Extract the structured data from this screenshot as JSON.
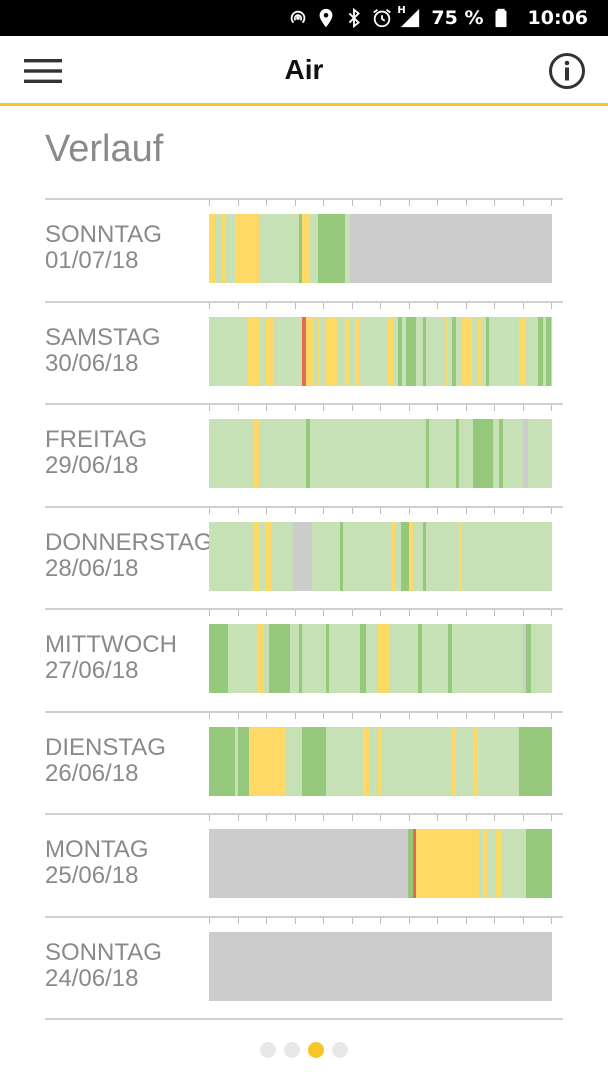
{
  "status_bar": {
    "battery_percent": "75 %",
    "time": "10:06",
    "network_label": "H",
    "icons": [
      "hotspot-icon",
      "location-icon",
      "bluetooth-icon",
      "alarm-icon",
      "signal-icon",
      "battery-icon"
    ]
  },
  "app_bar": {
    "title": "Air",
    "menu_icon": "hamburger-menu-icon",
    "info_icon": "info-icon"
  },
  "section_title": "Verlauf",
  "colors": {
    "accent": "#f6c627",
    "good": "#c5e1b5",
    "very_good": "#95c87a",
    "moderate": "#ffd966",
    "poor": "#e86a4e",
    "no_data": "#cccccc"
  },
  "days": [
    {
      "weekday": "SONNTAG",
      "date": "01/07/18",
      "segments": [
        {
          "start": 0,
          "end": 0.4,
          "level": "moderate"
        },
        {
          "start": 0.4,
          "end": 0.9,
          "level": "good"
        },
        {
          "start": 0.9,
          "end": 1.1,
          "level": "moderate"
        },
        {
          "start": 1.1,
          "end": 1.8,
          "level": "good"
        },
        {
          "start": 1.8,
          "end": 3.5,
          "level": "moderate"
        },
        {
          "start": 3.5,
          "end": 6.3,
          "level": "good"
        },
        {
          "start": 6.3,
          "end": 6.5,
          "level": "very_good"
        },
        {
          "start": 6.5,
          "end": 7.0,
          "level": "moderate"
        },
        {
          "start": 7.0,
          "end": 7.6,
          "level": "good"
        },
        {
          "start": 7.6,
          "end": 9.5,
          "level": "very_good"
        },
        {
          "start": 9.5,
          "end": 9.9,
          "level": "good"
        },
        {
          "start": 9.9,
          "end": 24,
          "level": "no_data"
        }
      ]
    },
    {
      "weekday": "SAMSTAG",
      "date": "30/06/18",
      "segments": [
        {
          "start": 0,
          "end": 2.7,
          "level": "good"
        },
        {
          "start": 2.7,
          "end": 3.6,
          "level": "moderate"
        },
        {
          "start": 3.6,
          "end": 4.0,
          "level": "good"
        },
        {
          "start": 4.0,
          "end": 4.5,
          "level": "moderate"
        },
        {
          "start": 4.5,
          "end": 6.5,
          "level": "good"
        },
        {
          "start": 6.5,
          "end": 6.8,
          "level": "poor"
        },
        {
          "start": 6.8,
          "end": 7.3,
          "level": "moderate"
        },
        {
          "start": 7.3,
          "end": 7.6,
          "level": "good"
        },
        {
          "start": 7.6,
          "end": 7.8,
          "level": "moderate"
        },
        {
          "start": 7.8,
          "end": 8.1,
          "level": "good"
        },
        {
          "start": 8.1,
          "end": 9.0,
          "level": "moderate"
        },
        {
          "start": 9.0,
          "end": 9.5,
          "level": "good"
        },
        {
          "start": 9.5,
          "end": 9.8,
          "level": "moderate"
        },
        {
          "start": 9.8,
          "end": 10.2,
          "level": "good"
        },
        {
          "start": 10.2,
          "end": 10.6,
          "level": "moderate"
        },
        {
          "start": 10.6,
          "end": 12.5,
          "level": "good"
        },
        {
          "start": 12.5,
          "end": 12.9,
          "level": "moderate"
        },
        {
          "start": 12.9,
          "end": 13.2,
          "level": "good"
        },
        {
          "start": 13.2,
          "end": 13.5,
          "level": "very_good"
        },
        {
          "start": 13.5,
          "end": 13.8,
          "level": "good"
        },
        {
          "start": 13.8,
          "end": 14.5,
          "level": "very_good"
        },
        {
          "start": 14.5,
          "end": 15.0,
          "level": "good"
        },
        {
          "start": 15.0,
          "end": 15.2,
          "level": "very_good"
        },
        {
          "start": 15.2,
          "end": 16.5,
          "level": "good"
        },
        {
          "start": 16.5,
          "end": 16.7,
          "level": "moderate"
        },
        {
          "start": 16.7,
          "end": 17.0,
          "level": "good"
        },
        {
          "start": 17.0,
          "end": 17.3,
          "level": "very_good"
        },
        {
          "start": 17.3,
          "end": 17.6,
          "level": "good"
        },
        {
          "start": 17.6,
          "end": 18.4,
          "level": "moderate"
        },
        {
          "start": 18.4,
          "end": 18.8,
          "level": "good"
        },
        {
          "start": 18.8,
          "end": 19.1,
          "level": "moderate"
        },
        {
          "start": 19.1,
          "end": 19.4,
          "level": "good"
        },
        {
          "start": 19.4,
          "end": 19.6,
          "level": "very_good"
        },
        {
          "start": 19.6,
          "end": 21.7,
          "level": "good"
        },
        {
          "start": 21.7,
          "end": 22.2,
          "level": "moderate"
        },
        {
          "start": 22.2,
          "end": 23.0,
          "level": "good"
        },
        {
          "start": 23.0,
          "end": 23.4,
          "level": "very_good"
        },
        {
          "start": 23.4,
          "end": 23.6,
          "level": "good"
        },
        {
          "start": 23.6,
          "end": 23.9,
          "level": "very_good"
        },
        {
          "start": 23.9,
          "end": 24,
          "level": "good"
        }
      ]
    },
    {
      "weekday": "FREITAG",
      "date": "29/06/18",
      "segments": [
        {
          "start": 0,
          "end": 3.1,
          "level": "good"
        },
        {
          "start": 3.1,
          "end": 3.5,
          "level": "moderate"
        },
        {
          "start": 3.5,
          "end": 6.8,
          "level": "good"
        },
        {
          "start": 6.8,
          "end": 7.1,
          "level": "very_good"
        },
        {
          "start": 7.1,
          "end": 15.2,
          "level": "good"
        },
        {
          "start": 15.2,
          "end": 15.4,
          "level": "very_good"
        },
        {
          "start": 15.4,
          "end": 17.3,
          "level": "good"
        },
        {
          "start": 17.3,
          "end": 17.5,
          "level": "very_good"
        },
        {
          "start": 17.5,
          "end": 18.5,
          "level": "good"
        },
        {
          "start": 18.5,
          "end": 19.9,
          "level": "very_good"
        },
        {
          "start": 19.9,
          "end": 20.3,
          "level": "good"
        },
        {
          "start": 20.3,
          "end": 20.6,
          "level": "very_good"
        },
        {
          "start": 20.6,
          "end": 22.0,
          "level": "good"
        },
        {
          "start": 22.0,
          "end": 22.3,
          "level": "no_data"
        },
        {
          "start": 22.3,
          "end": 24,
          "level": "good"
        }
      ]
    },
    {
      "weekday": "DONNERSTAG",
      "date": "28/06/18",
      "segments": [
        {
          "start": 0,
          "end": 3.1,
          "level": "good"
        },
        {
          "start": 3.1,
          "end": 3.6,
          "level": "moderate"
        },
        {
          "start": 3.6,
          "end": 3.9,
          "level": "good"
        },
        {
          "start": 3.9,
          "end": 4.4,
          "level": "moderate"
        },
        {
          "start": 4.4,
          "end": 5.9,
          "level": "good"
        },
        {
          "start": 5.9,
          "end": 7.2,
          "level": "no_data"
        },
        {
          "start": 7.2,
          "end": 9.2,
          "level": "good"
        },
        {
          "start": 9.2,
          "end": 9.4,
          "level": "very_good"
        },
        {
          "start": 9.4,
          "end": 12.8,
          "level": "good"
        },
        {
          "start": 12.8,
          "end": 13.0,
          "level": "moderate"
        },
        {
          "start": 13.0,
          "end": 13.4,
          "level": "good"
        },
        {
          "start": 13.4,
          "end": 14.0,
          "level": "very_good"
        },
        {
          "start": 14.0,
          "end": 14.3,
          "level": "moderate"
        },
        {
          "start": 14.3,
          "end": 15.0,
          "level": "good"
        },
        {
          "start": 15.0,
          "end": 15.2,
          "level": "very_good"
        },
        {
          "start": 15.2,
          "end": 17.5,
          "level": "good"
        },
        {
          "start": 17.5,
          "end": 17.7,
          "level": "moderate"
        },
        {
          "start": 17.7,
          "end": 24,
          "level": "good"
        }
      ]
    },
    {
      "weekday": "MITTWOCH",
      "date": "27/06/18",
      "segments": [
        {
          "start": 0,
          "end": 1.3,
          "level": "very_good"
        },
        {
          "start": 1.3,
          "end": 3.4,
          "level": "good"
        },
        {
          "start": 3.4,
          "end": 3.8,
          "level": "moderate"
        },
        {
          "start": 3.8,
          "end": 4.2,
          "level": "good"
        },
        {
          "start": 4.2,
          "end": 5.7,
          "level": "very_good"
        },
        {
          "start": 5.7,
          "end": 6.3,
          "level": "good"
        },
        {
          "start": 6.3,
          "end": 6.5,
          "level": "very_good"
        },
        {
          "start": 6.5,
          "end": 8.2,
          "level": "good"
        },
        {
          "start": 8.2,
          "end": 8.4,
          "level": "very_good"
        },
        {
          "start": 8.4,
          "end": 10.6,
          "level": "good"
        },
        {
          "start": 10.6,
          "end": 11.0,
          "level": "very_good"
        },
        {
          "start": 11.0,
          "end": 11.8,
          "level": "good"
        },
        {
          "start": 11.8,
          "end": 12.6,
          "level": "moderate"
        },
        {
          "start": 12.6,
          "end": 14.6,
          "level": "good"
        },
        {
          "start": 14.6,
          "end": 14.9,
          "level": "very_good"
        },
        {
          "start": 14.9,
          "end": 16.7,
          "level": "good"
        },
        {
          "start": 16.7,
          "end": 17.0,
          "level": "very_good"
        },
        {
          "start": 17.0,
          "end": 22.0,
          "level": "good"
        },
        {
          "start": 22.0,
          "end": 22.2,
          "level": "no_data"
        },
        {
          "start": 22.2,
          "end": 22.5,
          "level": "very_good"
        },
        {
          "start": 22.5,
          "end": 24,
          "level": "good"
        }
      ]
    },
    {
      "weekday": "DIENSTAG",
      "date": "26/06/18",
      "segments": [
        {
          "start": 0,
          "end": 1.8,
          "level": "very_good"
        },
        {
          "start": 1.8,
          "end": 2.0,
          "level": "good"
        },
        {
          "start": 2.0,
          "end": 2.8,
          "level": "very_good"
        },
        {
          "start": 2.8,
          "end": 5.3,
          "level": "moderate"
        },
        {
          "start": 5.3,
          "end": 6.5,
          "level": "good"
        },
        {
          "start": 6.5,
          "end": 8.2,
          "level": "very_good"
        },
        {
          "start": 8.2,
          "end": 10.8,
          "level": "good"
        },
        {
          "start": 10.8,
          "end": 11.2,
          "level": "moderate"
        },
        {
          "start": 11.2,
          "end": 11.8,
          "level": "good"
        },
        {
          "start": 11.8,
          "end": 12.0,
          "level": "moderate"
        },
        {
          "start": 12.0,
          "end": 17.0,
          "level": "good"
        },
        {
          "start": 17.0,
          "end": 17.3,
          "level": "moderate"
        },
        {
          "start": 17.3,
          "end": 18.5,
          "level": "good"
        },
        {
          "start": 18.5,
          "end": 18.8,
          "level": "moderate"
        },
        {
          "start": 18.8,
          "end": 21.7,
          "level": "good"
        },
        {
          "start": 21.7,
          "end": 24,
          "level": "very_good"
        }
      ]
    },
    {
      "weekday": "MONTAG",
      "date": "25/06/18",
      "segments": [
        {
          "start": 0,
          "end": 13.9,
          "level": "no_data"
        },
        {
          "start": 13.9,
          "end": 14.3,
          "level": "very_good"
        },
        {
          "start": 14.3,
          "end": 14.5,
          "level": "poor"
        },
        {
          "start": 14.5,
          "end": 18.9,
          "level": "moderate"
        },
        {
          "start": 18.9,
          "end": 19.2,
          "level": "good"
        },
        {
          "start": 19.2,
          "end": 19.5,
          "level": "moderate"
        },
        {
          "start": 19.5,
          "end": 20.1,
          "level": "good"
        },
        {
          "start": 20.1,
          "end": 20.4,
          "level": "moderate"
        },
        {
          "start": 20.4,
          "end": 22.2,
          "level": "good"
        },
        {
          "start": 22.2,
          "end": 24,
          "level": "very_good"
        }
      ]
    },
    {
      "weekday": "SONNTAG",
      "date": "24/06/18",
      "segments": [
        {
          "start": 0,
          "end": 24,
          "level": "no_data"
        }
      ]
    }
  ],
  "pager": {
    "count": 4,
    "active_index": 2
  }
}
